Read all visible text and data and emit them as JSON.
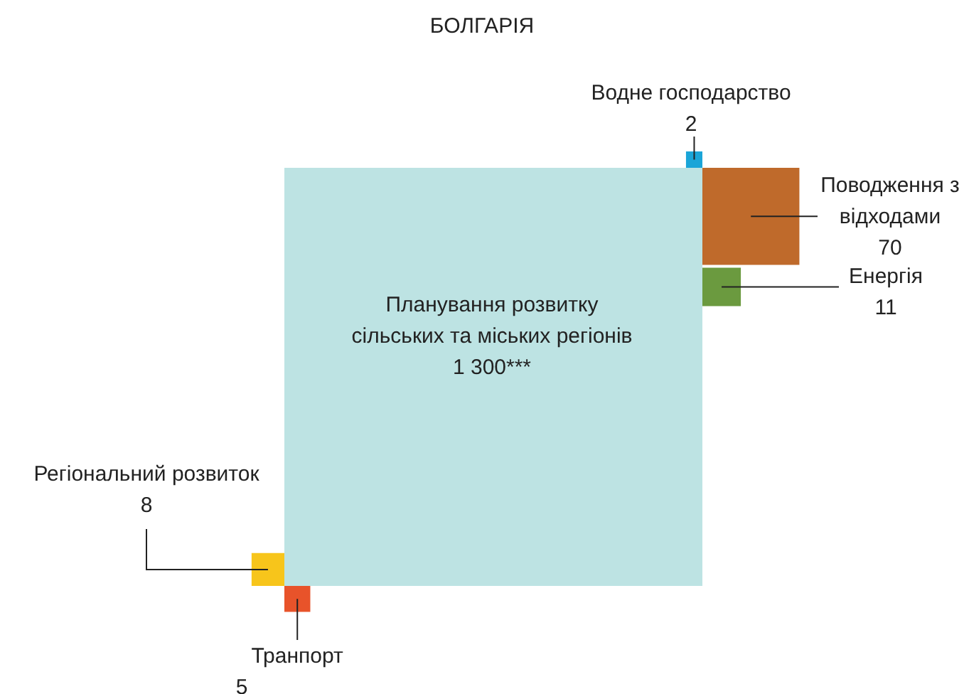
{
  "chart_data": {
    "type": "other",
    "title": "БОЛГАРІЯ",
    "categories": [
      "Планування розвитку сільських та міських регіонів",
      "Поводження з відходами",
      "Енергія",
      "Водне господарство",
      "Регіональний розвиток",
      "Транпорт"
    ],
    "values": [
      1300,
      70,
      11,
      2,
      8,
      5
    ],
    "value_labels": [
      "1 300***",
      "70",
      "11",
      "2",
      "8",
      "5"
    ],
    "colors": [
      "#bde3e3",
      "#bf6a2b",
      "#6b9a3f",
      "#1aa5d8",
      "#f7c51b",
      "#e8532a"
    ]
  }
}
